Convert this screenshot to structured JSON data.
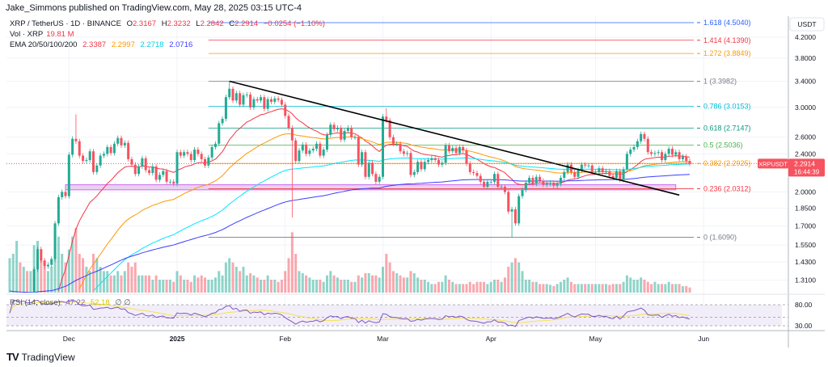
{
  "header": {
    "published": "Jake_Simmons published on TradingView.com, May 28, 2025 03:15 UTC-4"
  },
  "legend": {
    "symbol": "XRP / TetherUS · 1D · BINANCE",
    "open_label": "O",
    "open": "2.3167",
    "high_label": "H",
    "high": "2.3232",
    "low_label": "L",
    "low": "2.2842",
    "close_label": "C",
    "close": "2.2914",
    "change": "−0.0254 (−1.10%)",
    "vol_label": "Vol · XRP",
    "vol": "19.81 M",
    "ema_label": "EMA 20/50/100/200",
    "ema_values": [
      "2.3387",
      "2.2997",
      "2.2718",
      "2.0716"
    ]
  },
  "footer": {
    "brand": "TradingView"
  },
  "colors": {
    "up": "#22ab94",
    "down": "#f7525f",
    "ema20": "#f23645",
    "ema50": "#ff9800",
    "ema100": "#00e5ff",
    "ema200": "#3d3dff",
    "rsi": "#7e57c2",
    "rsi_ma": "#f5e34b",
    "box": "#c86cf0",
    "trendline": "#000000"
  },
  "chart_data": {
    "type": "candlestick",
    "scale": "log",
    "currency_label": "USDT",
    "y_ticks": [
      "4.2000",
      "3.8000",
      "3.4000",
      "3.0000",
      "2.6000",
      "2.4000",
      "2.0000",
      "1.8500",
      "1.7000",
      "1.5500",
      "1.4300",
      "1.3100"
    ],
    "x_ticks": [
      "Dec",
      "2025",
      "Feb",
      "Mar",
      "Apr",
      "May",
      "Jun"
    ],
    "closes_by_month": {
      "2024-11": [
        0.66,
        0.91,
        1.13,
        1.06,
        1.14,
        1.11,
        1.12,
        1.38,
        1.52,
        1.44,
        1.4,
        1.41,
        1.45,
        1.72,
        1.95,
        2.0,
        1.96
      ],
      "2024-12": [
        2.39,
        2.58,
        2.55,
        2.38,
        2.32,
        2.33,
        2.43,
        2.2,
        2.27,
        2.38,
        2.4,
        2.48,
        2.41,
        2.52,
        2.59,
        2.5,
        2.53,
        2.34,
        2.28,
        2.18,
        2.26,
        2.35,
        2.22,
        2.19,
        2.26,
        2.12,
        2.17,
        2.21,
        2.1,
        2.1,
        2.08
      ],
      "2025-01": [
        2.42,
        2.38,
        2.42,
        2.4,
        2.33,
        2.45,
        2.4,
        2.34,
        2.27,
        2.36,
        2.48,
        2.52,
        2.78,
        2.84,
        3.15,
        3.28,
        3.1,
        3.21,
        3.04,
        3.18,
        3.19,
        3.0,
        3.12,
        3.1,
        3.15,
        2.98,
        3.12,
        3.08,
        3.13,
        3.11,
        3.04
      ],
      "2025-02": [
        2.88,
        2.72,
        2.56,
        2.32,
        2.44,
        2.51,
        2.4,
        2.44,
        2.46,
        2.52,
        2.38,
        2.45,
        2.63,
        2.76,
        2.7,
        2.72,
        2.57,
        2.68,
        2.72,
        2.6,
        2.6,
        2.28,
        2.42,
        2.15,
        2.3,
        2.18,
        2.1,
        2.15
      ],
      "2025-03": [
        2.87,
        2.82,
        2.6,
        2.52,
        2.52,
        2.43,
        2.4,
        2.41,
        2.17,
        2.2,
        2.31,
        2.23,
        2.31,
        2.33,
        2.35,
        2.33,
        2.28,
        2.3,
        2.5,
        2.43,
        2.47,
        2.41,
        2.48,
        2.44,
        2.29,
        2.2,
        2.19,
        2.16,
        2.1,
        2.05,
        2.1
      ],
      "2025-04": [
        2.1,
        2.18,
        2.05,
        2.05,
        2.0,
        1.82,
        1.84,
        1.72,
        1.96,
        2.02,
        2.09,
        2.14,
        2.08,
        2.15,
        2.11,
        2.07,
        2.08,
        2.09,
        2.06,
        2.08,
        2.14,
        2.2,
        2.28,
        2.2,
        2.15,
        2.22,
        2.28,
        2.27,
        2.27,
        2.2
      ],
      "2025-05": [
        2.2,
        2.24,
        2.2,
        2.21,
        2.16,
        2.14,
        2.21,
        2.12,
        2.23,
        2.4,
        2.45,
        2.48,
        2.55,
        2.64,
        2.58,
        2.42,
        2.4,
        2.41,
        2.42,
        2.33,
        2.4,
        2.46,
        2.39,
        2.42,
        2.34,
        2.37,
        2.32,
        2.2914
      ]
    },
    "notable_extremes": [
      {
        "date": "2024-12-03",
        "high": 2.9
      },
      {
        "date": "2025-01-16",
        "high": 3.4
      },
      {
        "date": "2025-02-03",
        "low": 1.77
      },
      {
        "date": "2025-03-02",
        "high": 2.99
      },
      {
        "date": "2025-04-07",
        "low": 1.61
      }
    ],
    "volume_millions_by_month": {
      "2024-11": [
        800,
        900,
        1200,
        700,
        600,
        500,
        500,
        1100,
        1200,
        800,
        600,
        500,
        600,
        900,
        1300,
        900,
        700
      ],
      "2024-12": [
        1000,
        1300,
        1500,
        900,
        800,
        600,
        500,
        900,
        800,
        600,
        500,
        500,
        400,
        400,
        500,
        400,
        500,
        700,
        600,
        700,
        400,
        400,
        400,
        400,
        300,
        400,
        300,
        300,
        300,
        300,
        250
      ],
      "2025-01": [
        500,
        400,
        300,
        300,
        250,
        400,
        350,
        400,
        350,
        300,
        300,
        350,
        500,
        400,
        700,
        800,
        700,
        600,
        500,
        600,
        400,
        450,
        400,
        350,
        300,
        300,
        400,
        300,
        300,
        250,
        300
      ],
      "2025-02": [
        500,
        800,
        1400,
        900,
        500,
        450,
        400,
        350,
        300,
        300,
        300,
        250,
        400,
        500,
        400,
        350,
        300,
        300,
        300,
        250,
        250,
        400,
        350,
        450,
        450,
        400,
        400,
        350
      ],
      "2025-03": [
        600,
        900,
        700,
        500,
        450,
        400,
        350,
        350,
        500,
        450,
        350,
        300,
        300,
        250,
        200,
        200,
        250,
        250,
        400,
        300,
        250,
        200,
        200,
        200,
        200,
        250,
        200,
        250,
        250,
        250,
        200
      ],
      "2025-04": [
        250,
        300,
        300,
        250,
        350,
        600,
        700,
        800,
        700,
        500,
        300,
        300,
        250,
        250,
        200,
        200,
        200,
        180,
        150,
        200,
        250,
        300,
        350,
        250,
        200,
        200,
        200,
        200,
        200,
        200
      ],
      "2025-05": [
        200,
        200,
        200,
        200,
        180,
        200,
        200,
        200,
        250,
        400,
        350,
        300,
        300,
        350,
        300,
        250,
        200,
        250,
        200,
        200,
        200,
        250,
        200,
        200,
        200,
        150,
        150,
        120
      ]
    },
    "fib_levels": [
      {
        "label": "1.618 (4.5040)",
        "price": 4.504,
        "color": "#2962ff"
      },
      {
        "label": "1.414 (4.1390)",
        "price": 4.139,
        "color": "#f23645"
      },
      {
        "label": "1.272 (3.8849)",
        "price": 3.8849,
        "color": "#ff9800"
      },
      {
        "label": "1 (3.3982)",
        "price": 3.3982,
        "color": "#787b86"
      },
      {
        "label": "0.786 (3.0153)",
        "price": 3.0153,
        "color": "#00bcd4"
      },
      {
        "label": "0.618 (2.7147)",
        "price": 2.7147,
        "color": "#089981"
      },
      {
        "label": "0.5 (2.5036)",
        "price": 2.5036,
        "color": "#4caf50"
      },
      {
        "label": "0.382 (2.2925)",
        "price": 2.2925,
        "color": "#ff9800"
      },
      {
        "label": "0.236 (2.0312)",
        "price": 2.0312,
        "color": "#f23645"
      },
      {
        "label": "0 (1.6090)",
        "price": 1.609,
        "color": "#787b86"
      }
    ],
    "trendline": {
      "from": {
        "date": "2025-01-16",
        "price": 3.4
      },
      "to": {
        "date": "2025-05-25",
        "price": 1.97
      }
    },
    "support_box": {
      "from_date": "2024-11-30",
      "to_date": "2025-05-24",
      "low": 2.02,
      "high": 2.07
    },
    "price_tag": {
      "symbol": "XRPUSDT",
      "price": "2.2914",
      "countdown": "16:44:39"
    },
    "rsi": {
      "label": "RSI (14, close)",
      "value": "47.22",
      "ma_value": "52.18",
      "extra": "∅ ∅",
      "ticks": [
        "80.00",
        "30.00"
      ]
    }
  }
}
